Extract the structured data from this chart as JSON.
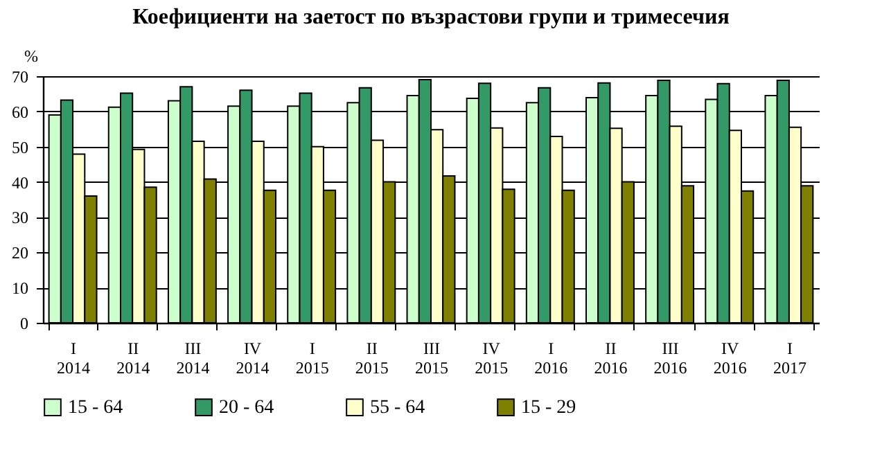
{
  "chart_data": {
    "type": "bar",
    "title": "Коефициенти на заетост по възрастови групи и тримесечия",
    "ylabel": "%",
    "categories": [
      "I\n2014",
      "II\n2014",
      "III\n2014",
      "IV\n2014",
      "I\n2015",
      "II\n2015",
      "III\n2015",
      "IV\n2015",
      "I\n2016",
      "II\n2016",
      "III\n2016",
      "IV\n2016",
      "I\n2017"
    ],
    "series": [
      {
        "name": "15 - 64",
        "color": "#ccffcc",
        "values": [
          59,
          61.2,
          63,
          61.5,
          61.5,
          62.5,
          64.5,
          63.7,
          62.5,
          63.9,
          64.5,
          63.4,
          64.5
        ]
      },
      {
        "name": "20 - 64",
        "color": "#339966",
        "values": [
          63.2,
          65.2,
          67,
          66,
          65.2,
          66.7,
          69,
          68,
          66.7,
          68.1,
          68.8,
          67.9,
          68.8
        ]
      },
      {
        "name": "55 - 64",
        "color": "#ffffcc",
        "values": [
          47.9,
          49.2,
          51.5,
          51.5,
          50,
          51.8,
          54.8,
          55.3,
          52.9,
          55.2,
          55.8,
          54.6,
          55.5
        ]
      },
      {
        "name": "15 - 29",
        "color": "#808000",
        "values": [
          36,
          38.5,
          40.8,
          37.6,
          37.6,
          40,
          41.7,
          37.9,
          37.6,
          40,
          38.9,
          37.4,
          38.9
        ]
      }
    ],
    "ylim": [
      0,
      70
    ],
    "yticks": [
      0,
      10,
      20,
      30,
      40,
      50,
      60,
      70
    ],
    "grid": "y",
    "legend": "bottom"
  }
}
